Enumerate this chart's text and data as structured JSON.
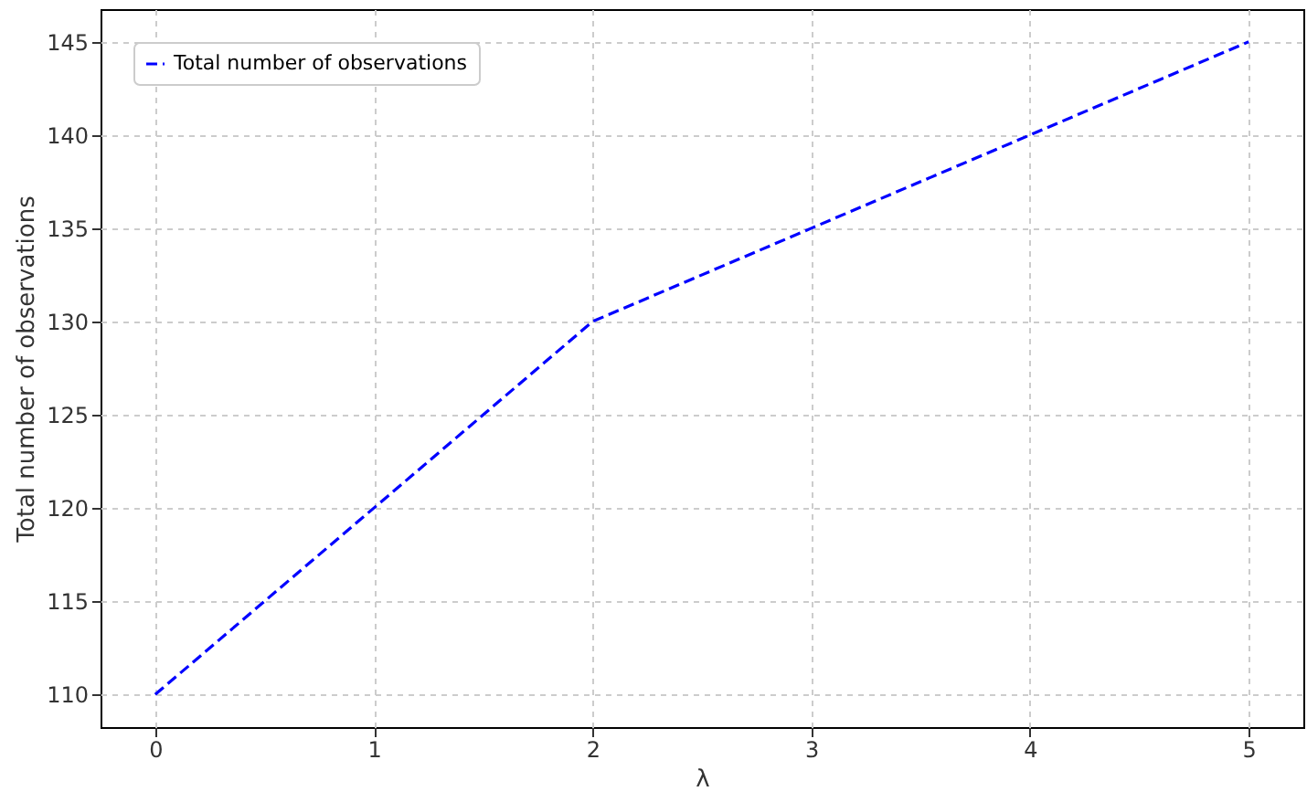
{
  "chart_data": {
    "type": "line",
    "xlabel": "λ",
    "ylabel": "Total number of observations",
    "x": [
      0,
      1,
      2,
      3,
      4,
      5
    ],
    "series": [
      {
        "name": "Total number of observations",
        "color": "#0000ff",
        "values": [
          110,
          120,
          130,
          135,
          140,
          145
        ]
      }
    ],
    "xlim": [
      -0.25,
      5.25
    ],
    "ylim": [
      108.25,
      146.75
    ],
    "xticks": [
      0,
      1,
      2,
      3,
      4,
      5
    ],
    "yticks": [
      110,
      115,
      120,
      125,
      130,
      135,
      140,
      145
    ],
    "grid": true,
    "legend": "top left",
    "line_style": "dashed"
  }
}
